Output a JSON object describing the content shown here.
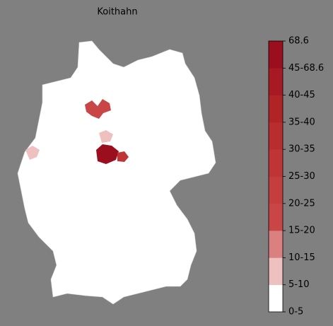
{
  "title": "Koithahn",
  "colorbar": {
    "labels": [
      "0-5",
      "5-10",
      "10-15",
      "15-20",
      "20-25",
      "25-30",
      "30-35",
      "35-40",
      "40-45",
      "45-68.6",
      "68.6"
    ],
    "colors": [
      "#ffffff",
      "#eec0c0",
      "#da8080",
      "#c94646",
      "#c53e3e",
      "#bf3535",
      "#b82d2d",
      "#b02426",
      "#a71a23",
      "#9b0e1e"
    ]
  }
}
